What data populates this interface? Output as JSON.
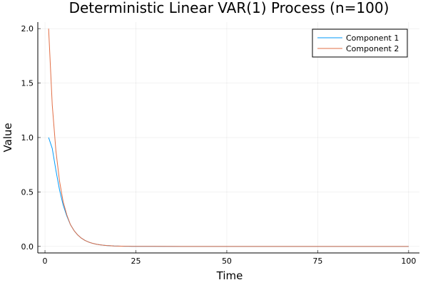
{
  "chart_data": {
    "type": "line",
    "title": "Deterministic Linear VAR(1) Process (n=100)",
    "xlabel": "Time",
    "ylabel": "Value",
    "xlim": [
      -1.97,
      102.97
    ],
    "ylim": [
      -0.06,
      2.06
    ],
    "xticks": [
      0,
      25,
      50,
      75,
      100
    ],
    "yticks": [
      0.0,
      0.5,
      1.0,
      1.5,
      2.0
    ],
    "xtick_labels": [
      "0",
      "25",
      "50",
      "75",
      "100"
    ],
    "ytick_labels": [
      "0.0",
      "0.5",
      "1.0",
      "1.5",
      "2.0"
    ],
    "grid": true,
    "legend_position": "top-right",
    "series": [
      {
        "name": "Component 1",
        "color": "#009AFA",
        "x": [
          1,
          2,
          3,
          4,
          5,
          6,
          7,
          8,
          9,
          10,
          11,
          12,
          13,
          14,
          15,
          16,
          17,
          18,
          19,
          20,
          21,
          22,
          23,
          24,
          25,
          30,
          40,
          50,
          60,
          70,
          80,
          90,
          100
        ],
        "y": [
          1.0,
          0.9,
          0.7,
          0.52,
          0.38,
          0.28,
          0.2,
          0.145,
          0.105,
          0.076,
          0.055,
          0.04,
          0.029,
          0.021,
          0.015,
          0.011,
          0.008,
          0.006,
          0.004,
          0.003,
          0.002,
          0.0015,
          0.001,
          0.0007,
          0.0005,
          0.0001,
          0.0,
          0.0,
          0.0,
          0.0,
          0.0,
          0.0,
          0.0
        ]
      },
      {
        "name": "Component 2",
        "color": "#E26F46",
        "x": [
          1,
          2,
          3,
          4,
          5,
          6,
          7,
          8,
          9,
          10,
          11,
          12,
          13,
          14,
          15,
          16,
          17,
          18,
          19,
          20,
          21,
          22,
          23,
          24,
          25,
          30,
          40,
          50,
          60,
          70,
          80,
          90,
          100
        ],
        "y": [
          2.0,
          1.3,
          0.88,
          0.6,
          0.41,
          0.29,
          0.2,
          0.145,
          0.105,
          0.076,
          0.055,
          0.04,
          0.029,
          0.021,
          0.015,
          0.011,
          0.008,
          0.006,
          0.004,
          0.003,
          0.002,
          0.0015,
          0.001,
          0.0007,
          0.0005,
          0.0001,
          0.0,
          0.0,
          0.0,
          0.0,
          0.0,
          0.0,
          0.0
        ]
      }
    ]
  }
}
